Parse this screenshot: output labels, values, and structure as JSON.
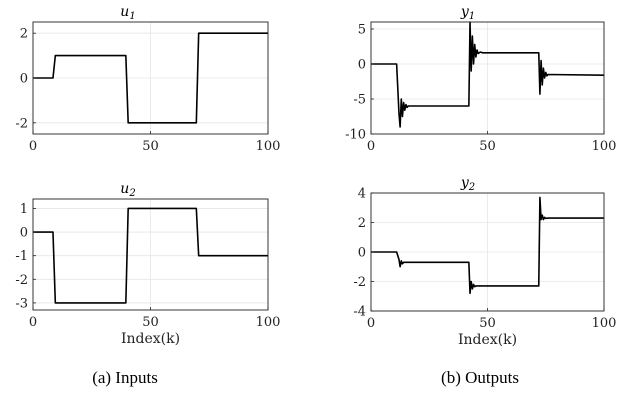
{
  "chart_data": [
    {
      "type": "line",
      "title": "u",
      "title_subscript": "1",
      "xlabel": "",
      "ylabel": "",
      "xlim": [
        0,
        100
      ],
      "ylim": [
        -2.5,
        2.5
      ],
      "xticks": [
        0,
        50,
        100
      ],
      "yticks": [
        -2,
        0,
        2
      ],
      "grid": true,
      "series": [
        {
          "x": [
            0,
            8.5,
            9.5,
            39.5,
            40.5,
            69.5,
            70.5,
            100
          ],
          "y": [
            0,
            0,
            1,
            1,
            -2,
            -2,
            2,
            2
          ]
        }
      ]
    },
    {
      "type": "line",
      "title": "y",
      "title_subscript": "1",
      "xlabel": "",
      "ylabel": "",
      "xlim": [
        0,
        100
      ],
      "ylim": [
        -10,
        6
      ],
      "xticks": [
        0,
        50,
        100
      ],
      "yticks": [
        -10,
        -5,
        0,
        5
      ],
      "grid": true,
      "series": [
        {
          "x": [
            0,
            11,
            12,
            12.5,
            13,
            13.5,
            14,
            14.5,
            15,
            15.5,
            16,
            17,
            42,
            42.5,
            43,
            43.5,
            44,
            44.5,
            45,
            45.5,
            46,
            47,
            48,
            72,
            72.5,
            73,
            73.5,
            74,
            74.5,
            75,
            75.5,
            76,
            100
          ],
          "y": [
            0,
            0,
            -7,
            -9,
            -5,
            -7.5,
            -5.5,
            -6.6,
            -5.8,
            -6.2,
            -6,
            -6,
            -6,
            6,
            -1,
            4,
            0,
            2.8,
            1,
            2,
            1.5,
            1.7,
            1.6,
            1.6,
            -4.3,
            0.5,
            -3,
            -0.6,
            -2,
            -1.2,
            -1.7,
            -1.5,
            -1.6
          ]
        }
      ]
    },
    {
      "type": "line",
      "title": "u",
      "title_subscript": "2",
      "xlabel": "Index(k)",
      "ylabel": "",
      "xlim": [
        0,
        100
      ],
      "ylim": [
        -3.3,
        1.4
      ],
      "xticks": [
        0,
        50,
        100
      ],
      "yticks": [
        -3,
        -2,
        -1,
        0,
        1
      ],
      "grid": true,
      "series": [
        {
          "x": [
            0,
            8.5,
            9.5,
            39.5,
            40.5,
            69.5,
            70.5,
            100
          ],
          "y": [
            0,
            0,
            -3,
            -3,
            1,
            1,
            -1,
            -1
          ]
        }
      ]
    },
    {
      "type": "line",
      "title": "y",
      "title_subscript": "2",
      "xlabel": "Index(k)",
      "ylabel": "",
      "xlim": [
        0,
        100
      ],
      "ylim": [
        -4,
        4
      ],
      "xticks": [
        0,
        50,
        100
      ],
      "yticks": [
        -4,
        -2,
        0,
        2,
        4
      ],
      "grid": true,
      "series": [
        {
          "x": [
            0,
            11,
            12,
            12.5,
            13,
            13.5,
            14,
            15,
            42,
            42.5,
            43,
            43.5,
            44,
            44.5,
            45,
            72,
            72.5,
            73,
            73.5,
            74,
            74.5,
            75,
            76,
            100
          ],
          "y": [
            0,
            0,
            -0.5,
            -1,
            -0.6,
            -0.8,
            -0.7,
            -0.7,
            -0.7,
            -2.8,
            -2,
            -2.5,
            -2.2,
            -2.35,
            -2.3,
            -2.3,
            3.7,
            2.2,
            2.5,
            2.2,
            2.35,
            2.28,
            2.3,
            2.3
          ]
        }
      ]
    }
  ],
  "captions": {
    "inputs": "(a) Inputs",
    "outputs": "(b) Outputs"
  }
}
